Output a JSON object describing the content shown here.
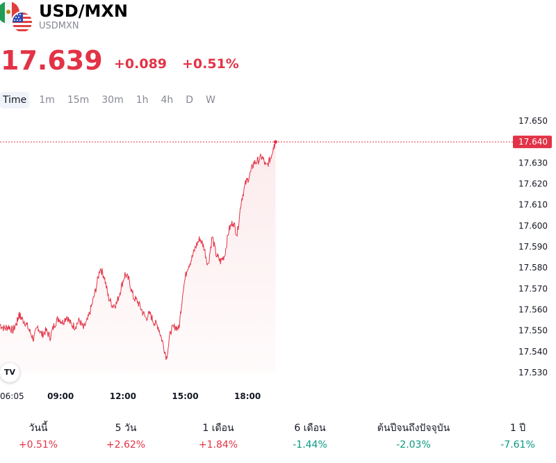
{
  "header": {
    "title": "USD/MXN",
    "symbol": "USDMXN",
    "base_flag_icon": "mexico-flag-icon",
    "quote_flag_icon": "us-flag-icon"
  },
  "quote": {
    "price": "17.639",
    "change": "+0.089",
    "change_percent": "+0.51%",
    "color": "#e23346"
  },
  "intervals": [
    "Time",
    "1m",
    "15m",
    "30m",
    "1h",
    "4h",
    "D",
    "W"
  ],
  "active_interval": "Time",
  "brand": {
    "logo_text": "TV"
  },
  "performance": [
    {
      "label": "วันนี้",
      "value": "+0.51%",
      "trend": "pos"
    },
    {
      "label": "5 วัน",
      "value": "+2.62%",
      "trend": "pos"
    },
    {
      "label": "1 เดือน",
      "value": "+1.84%",
      "trend": "pos"
    },
    {
      "label": "6 เดือน",
      "value": "-1.44%",
      "trend": "neg"
    },
    {
      "label": "ต้นปีจนถึงปัจจุบัน",
      "value": "-2.03%",
      "trend": "neg"
    },
    {
      "label": "1 ปี",
      "value": "-7.61%",
      "trend": "neg"
    }
  ],
  "chart_data": {
    "type": "area",
    "line_color": "#e23346",
    "y_ticks": [
      "17.530",
      "17.540",
      "17.550",
      "17.560",
      "17.570",
      "17.580",
      "17.590",
      "17.600",
      "17.610",
      "17.620",
      "17.630",
      "17.640",
      "17.650"
    ],
    "ylim": [
      17.53,
      17.65
    ],
    "x_ticks": [
      {
        "label": "06:05",
        "hour": 6.083
      },
      {
        "label": "09:00",
        "hour": 9.0
      },
      {
        "label": "12:00",
        "hour": 12.0
      },
      {
        "label": "15:00",
        "hour": 15.0
      },
      {
        "label": "18:00",
        "hour": 18.0
      }
    ],
    "xlim": [
      6.083,
      19.4
    ],
    "last_price_label": "17.640",
    "last_price": 17.64,
    "series": [
      {
        "x": [
          6.08,
          6.3,
          6.5,
          6.7,
          6.9,
          7.0,
          7.1,
          7.3,
          7.5,
          7.7,
          7.9,
          8.1,
          8.3,
          8.5,
          8.7,
          8.9,
          9.1,
          9.3,
          9.5,
          9.7,
          9.9,
          10.1,
          10.3,
          10.5,
          10.7,
          10.9,
          11.1,
          11.3,
          11.5,
          11.7,
          11.9,
          12.1,
          12.3,
          12.5,
          12.7,
          12.9,
          13.1,
          13.3,
          13.5,
          13.7,
          13.9,
          14.1,
          14.3,
          14.5,
          14.7,
          14.9,
          15.1,
          15.3,
          15.5,
          15.7,
          15.9,
          16.1,
          16.3,
          16.5,
          16.7,
          16.9,
          17.1,
          17.3,
          17.5,
          17.7,
          17.9,
          18.1,
          18.3,
          18.5,
          18.7,
          18.9,
          19.1,
          19.2,
          19.3,
          19.35
        ],
        "y": [
          17.553,
          17.551,
          17.552,
          17.55,
          17.554,
          17.558,
          17.556,
          17.554,
          17.55,
          17.546,
          17.552,
          17.548,
          17.55,
          17.547,
          17.553,
          17.556,
          17.554,
          17.557,
          17.553,
          17.552,
          17.555,
          17.551,
          17.555,
          17.562,
          17.57,
          17.58,
          17.576,
          17.566,
          17.562,
          17.563,
          17.57,
          17.577,
          17.574,
          17.566,
          17.564,
          17.56,
          17.556,
          17.558,
          17.554,
          17.552,
          17.545,
          17.537,
          17.55,
          17.552,
          17.551,
          17.57,
          17.58,
          17.584,
          17.59,
          17.594,
          17.59,
          17.581,
          17.595,
          17.586,
          17.583,
          17.586,
          17.598,
          17.602,
          17.596,
          17.612,
          17.62,
          17.624,
          17.63,
          17.631,
          17.633,
          17.628,
          17.632,
          17.636,
          17.639,
          17.64
        ]
      }
    ]
  }
}
